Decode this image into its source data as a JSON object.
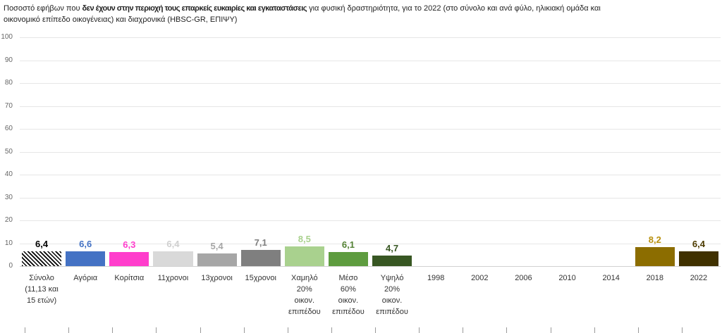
{
  "chart_data": {
    "type": "bar",
    "title": {
      "before": "Ποσοστό εφήβων που",
      "bold": "δεν έχουν στην περιοχή τους επαρκείς ευκαιρίες και εγκαταστάσεις",
      "after_line1": "για φυσική δραστηριότητα, για το 2022 (στο σύνολο και ανά φύλο, ηλικιακή ομάδα και",
      "after_line2": "οικονομικό επίπεδο οικογένειας) και διαχρονικά (HBSC-GR, ΕΠΙΨΥ)"
    },
    "ylim": [
      0,
      100
    ],
    "y_ticks": [
      0,
      10,
      20,
      30,
      40,
      50,
      60,
      70,
      80,
      90,
      100
    ],
    "grid": true,
    "categories": [
      "Σύνολο\n(11,13 και\n15 ετών)",
      "Αγόρια",
      "Κορίτσια",
      "11χρονοι",
      "13χρονοι",
      "15χρονοι",
      "Χαμηλό\n20%\nοικον.\nεπιπέδου",
      "Μέσο\n60%\nοικον.\nεπιπέδου",
      "Υψηλό\n20%\nοικον.\nεπιπέδου",
      "1998",
      "2002",
      "2006",
      "2010",
      "2014",
      "2018",
      "2022"
    ],
    "values": [
      6.4,
      6.6,
      6.3,
      6.4,
      5.4,
      7.1,
      8.5,
      6.1,
      4.7,
      null,
      null,
      null,
      null,
      null,
      8.2,
      6.4
    ],
    "data_labels": [
      "6,4",
      "6,6",
      "6,3",
      "6,4",
      "5,4",
      "7,1",
      "8,5",
      "6,1",
      "4,7",
      null,
      null,
      null,
      null,
      null,
      "8,2",
      "6,4"
    ],
    "bar_fills": [
      "#000000",
      "#4472C4",
      "#FF3DCC",
      "#D9D9D9",
      "#A6A6A6",
      "#7F7F7F",
      "#A9D18E",
      "#5E9C3F",
      "#385723",
      null,
      null,
      null,
      null,
      null,
      "#8C6D00",
      "#403100"
    ],
    "hatched": [
      true,
      false,
      false,
      false,
      false,
      false,
      false,
      false,
      false,
      false,
      false,
      false,
      false,
      false,
      false,
      false
    ],
    "label_colors": [
      "#000000",
      "#4472C4",
      "#FF3DCC",
      "#CFCFCF",
      "#A6A6A6",
      "#7F7F7F",
      "#A9D18E",
      "#548235",
      "#385723",
      null,
      null,
      null,
      null,
      null,
      "#B8900E",
      "#4D3B00"
    ]
  }
}
